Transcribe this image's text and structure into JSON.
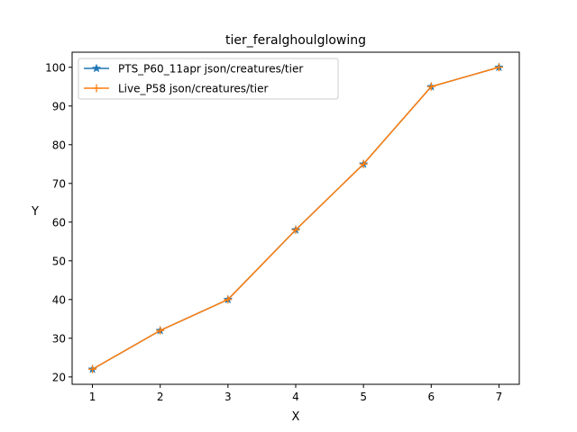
{
  "chart_data": {
    "type": "line",
    "title": "tier_feralghoulglowing",
    "xlabel": "X",
    "ylabel": "Y",
    "xlim": [
      0.7,
      7.3
    ],
    "ylim": [
      18.1,
      103.9
    ],
    "xticks": [
      1,
      2,
      3,
      4,
      5,
      6,
      7
    ],
    "yticks": [
      20,
      30,
      40,
      50,
      60,
      70,
      80,
      90,
      100
    ],
    "grid": false,
    "legend_position": "top-left",
    "x": [
      1,
      2,
      3,
      4,
      5,
      6,
      7
    ],
    "series": [
      {
        "name": "PTS_P60_11apr json/creatures/tier",
        "color": "#1f77b4",
        "marker": "star",
        "values": [
          22,
          32,
          40,
          58,
          75,
          95,
          100
        ]
      },
      {
        "name": "Live_P58 json/creatures/tier",
        "color": "#ff7f0e",
        "marker": "plus",
        "values": [
          22,
          32,
          40,
          58,
          75,
          95,
          100
        ]
      }
    ]
  }
}
